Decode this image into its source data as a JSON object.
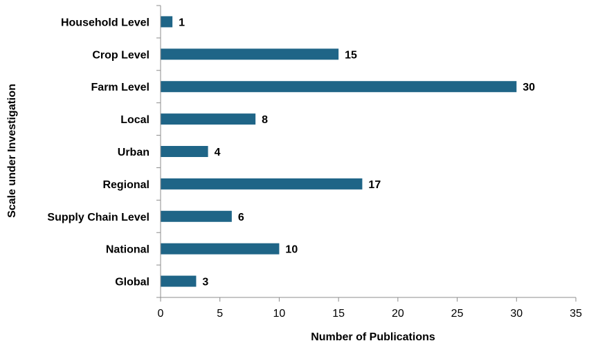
{
  "chart_data": {
    "type": "bar",
    "orientation": "horizontal",
    "categories": [
      "Household Level",
      "Crop Level",
      "Farm Level",
      "Local",
      "Urban",
      "Regional",
      "Supply Chain Level",
      "National",
      "Global"
    ],
    "values": [
      1,
      15,
      30,
      8,
      4,
      17,
      6,
      10,
      3
    ],
    "xlabel": "Number of Publications",
    "ylabel": "Scale under Investigation",
    "xlim": [
      0,
      35
    ],
    "xticks": [
      0,
      5,
      10,
      15,
      20,
      25,
      30,
      35
    ],
    "grid": false,
    "legend": "none",
    "bar_color": "#1f6587",
    "axis_color": "#8c8c8c"
  }
}
